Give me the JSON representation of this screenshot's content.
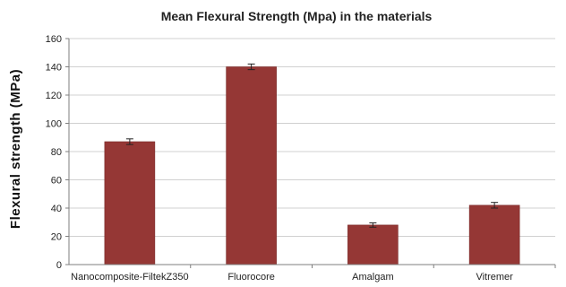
{
  "chart_data": {
    "type": "bar",
    "title": "Mean Flexural Strength (Mpa) in the materials",
    "xlabel": "",
    "ylabel": "Flexural strength (MPa)",
    "categories": [
      "Nanocomposite-FiltekZ350",
      "Fluorocore",
      "Amalgam",
      "Vitremer"
    ],
    "values": [
      87,
      140,
      28,
      42
    ],
    "error": [
      2,
      2,
      1.5,
      2
    ],
    "ylim": [
      0,
      160
    ],
    "yticks": [
      0,
      20,
      40,
      60,
      80,
      100,
      120,
      140,
      160
    ],
    "grid": true,
    "legend": "none",
    "colors": {
      "bar": "#953735",
      "bar_edge": "#7a2b2a"
    }
  }
}
